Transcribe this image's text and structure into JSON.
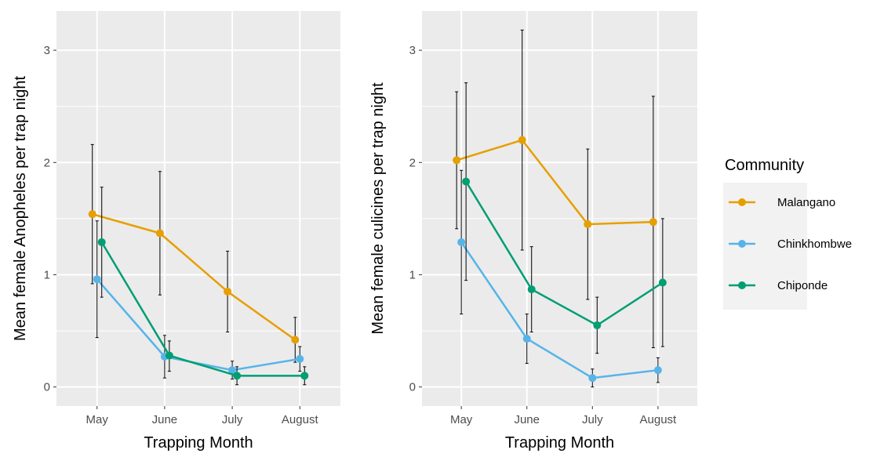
{
  "chart_data": [
    {
      "type": "line",
      "title": "",
      "xlabel": "Trapping Month",
      "ylabel": "Mean female Anopheles per trap night",
      "categories": [
        "May",
        "June",
        "July",
        "August"
      ],
      "ylim": [
        -0.17,
        3.35
      ],
      "yticks": [
        0,
        1,
        2,
        3
      ],
      "grid": true,
      "series": [
        {
          "name": "Malangano",
          "color": "#E69F00",
          "values": [
            1.54,
            1.37,
            0.85,
            0.42
          ],
          "lower": [
            0.92,
            0.82,
            0.49,
            0.22
          ],
          "upper": [
            2.16,
            1.92,
            1.21,
            0.62
          ]
        },
        {
          "name": "Chinkhombwe",
          "color": "#56B4E9",
          "values": [
            0.96,
            0.27,
            0.15,
            0.25
          ],
          "lower": [
            0.44,
            0.08,
            0.07,
            0.14
          ],
          "upper": [
            1.48,
            0.46,
            0.23,
            0.36
          ]
        },
        {
          "name": "Chiponde",
          "color": "#009E73",
          "values": [
            1.29,
            0.28,
            0.1,
            0.1
          ],
          "lower": [
            0.8,
            0.14,
            0.02,
            0.02
          ],
          "upper": [
            1.78,
            0.41,
            0.18,
            0.18
          ]
        }
      ]
    },
    {
      "type": "line",
      "title": "",
      "xlabel": "Trapping Month",
      "ylabel": "Mean female culicines per trap night",
      "categories": [
        "May",
        "June",
        "July",
        "August"
      ],
      "ylim": [
        -0.17,
        3.35
      ],
      "yticks": [
        0,
        1,
        2,
        3
      ],
      "grid": true,
      "series": [
        {
          "name": "Malangano",
          "color": "#E69F00",
          "values": [
            2.02,
            2.2,
            1.45,
            1.47
          ],
          "lower": [
            1.41,
            1.22,
            0.78,
            0.35
          ],
          "upper": [
            2.63,
            3.18,
            2.12,
            2.59
          ]
        },
        {
          "name": "Chinkhombwe",
          "color": "#56B4E9",
          "values": [
            1.29,
            0.43,
            0.08,
            0.15
          ],
          "lower": [
            0.65,
            0.21,
            0.0,
            0.04
          ],
          "upper": [
            1.93,
            0.65,
            0.16,
            0.26
          ]
        },
        {
          "name": "Chiponde",
          "color": "#009E73",
          "values": [
            1.83,
            0.87,
            0.55,
            0.93
          ],
          "lower": [
            0.95,
            0.49,
            0.3,
            0.36
          ],
          "upper": [
            2.71,
            1.25,
            0.8,
            1.5
          ]
        }
      ]
    }
  ],
  "legend": {
    "title": "Community",
    "items": [
      {
        "label": "Malangano",
        "color": "#E69F00"
      },
      {
        "label": "Chinkhombwe",
        "color": "#56B4E9"
      },
      {
        "label": "Chiponde",
        "color": "#009E73"
      }
    ]
  },
  "style": {
    "panel_bg": "#EBEBEB",
    "grid_color": "#FFFFFF",
    "errorbar_color": "#000000"
  }
}
